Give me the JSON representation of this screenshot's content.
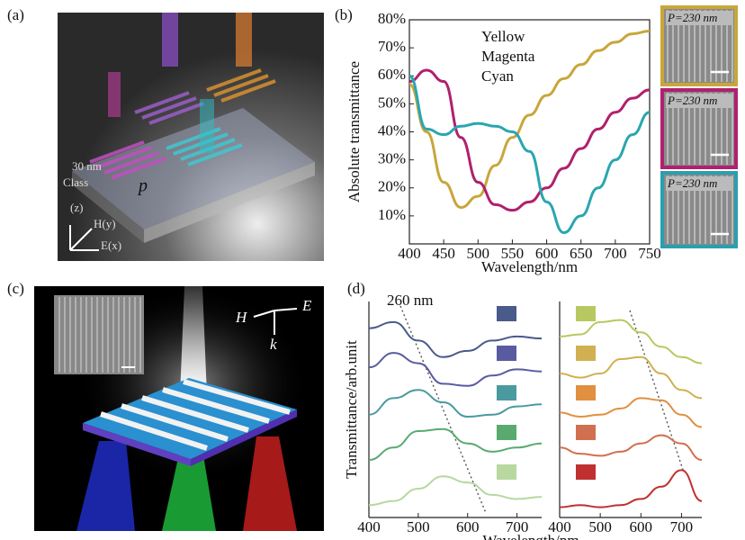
{
  "panel_labels": [
    "(a)",
    "(b)",
    "(c)",
    "(d)"
  ],
  "panel_a": {
    "thickness": "30 nm",
    "substrate": "Class",
    "period": "p",
    "h_field": "H(y)",
    "e_field": "E(x)",
    "k_axis": "(z)"
  },
  "panel_b_images": [
    {
      "label": "P=230 nm",
      "color": "#c9a63a"
    },
    {
      "label": "P=230 nm",
      "color": "#b0206e"
    },
    {
      "label": "P=230 nm",
      "color": "#2a9fb0"
    }
  ],
  "panel_c": {
    "h": "H",
    "e": "E",
    "k": "k"
  },
  "chart_data": [
    {
      "type": "line",
      "xlabel": "Wavelength/nm",
      "ylabel": "Absolute transmittance",
      "x": [
        400,
        425,
        450,
        475,
        500,
        525,
        550,
        575,
        600,
        625,
        650,
        675,
        700,
        725,
        750
      ],
      "series": [
        {
          "name": "Yellow",
          "color": "#c9a63a",
          "values": [
            57,
            40,
            22,
            13,
            17,
            28,
            38,
            46,
            53,
            59,
            64,
            69,
            72,
            75,
            76
          ]
        },
        {
          "name": "Magenta",
          "color": "#b0206e",
          "values": [
            58,
            62,
            58,
            38,
            22,
            14,
            12,
            15,
            20,
            27,
            34,
            41,
            47,
            52,
            55
          ]
        },
        {
          "name": "Cyan",
          "color": "#2aa6b0",
          "values": [
            60,
            41,
            39,
            42,
            43,
            42,
            40,
            33,
            15,
            4,
            10,
            20,
            30,
            39,
            47
          ]
        }
      ],
      "xlim": [
        400,
        750
      ],
      "xticks": [
        400,
        450,
        500,
        550,
        600,
        650,
        700,
        750
      ],
      "ylim": [
        0,
        80
      ],
      "yticks": [
        {
          "value": 10,
          "label": "10%"
        },
        {
          "value": 20,
          "label": "20%"
        },
        {
          "value": 30,
          "label": "30%"
        },
        {
          "value": 40,
          "label": "40%"
        },
        {
          "value": 50,
          "label": "50%"
        },
        {
          "value": 60,
          "label": "60%"
        },
        {
          "value": 70,
          "label": "70%"
        },
        {
          "value": 80,
          "label": "80%"
        }
      ]
    },
    {
      "type": "line",
      "xlabel": "Wavelength/nm",
      "ylabel": "Transmittance/arb.unit",
      "annotation": "260 nm",
      "x": [
        400,
        450,
        500,
        550,
        600,
        650,
        700,
        750
      ],
      "series": [
        {
          "color": "#4a5a8a",
          "values": [
            9.2,
            9.5,
            8.6,
            7.8,
            8.1,
            8.6,
            8.8,
            8.7
          ]
        },
        {
          "color": "#5a5aa0",
          "values": [
            7.3,
            8.0,
            7.5,
            6.5,
            6.4,
            6.9,
            7.2,
            7.1
          ]
        },
        {
          "color": "#4a9aa0",
          "values": [
            5.0,
            5.8,
            6.2,
            5.6,
            4.9,
            5.0,
            5.4,
            5.5
          ]
        },
        {
          "color": "#5aaa70",
          "values": [
            2.8,
            3.4,
            4.2,
            4.3,
            3.6,
            3.2,
            3.4,
            3.6
          ]
        },
        {
          "color": "#b8d8a0",
          "values": [
            0.6,
            0.8,
            1.4,
            2.0,
            1.7,
            1.1,
            0.9,
            1.0
          ]
        }
      ],
      "xlim": [
        400,
        750
      ],
      "xticks": [
        400,
        500,
        600,
        700
      ],
      "ylim": [
        0,
        10.5
      ]
    },
    {
      "type": "line",
      "x": [
        400,
        450,
        500,
        550,
        600,
        650,
        700,
        750
      ],
      "series": [
        {
          "color": "#b8c860",
          "values": [
            8.8,
            8.9,
            9.5,
            9.6,
            9.0,
            8.3,
            7.8,
            7.5
          ]
        },
        {
          "color": "#d0b050",
          "values": [
            7.0,
            6.8,
            7.0,
            7.7,
            7.8,
            7.0,
            6.2,
            5.8
          ]
        },
        {
          "color": "#e09040",
          "values": [
            5.1,
            4.9,
            5.0,
            5.3,
            5.8,
            5.7,
            5.0,
            4.4
          ]
        },
        {
          "color": "#d07050",
          "values": [
            3.4,
            3.1,
            3.0,
            3.2,
            3.6,
            4.0,
            3.6,
            2.8
          ]
        },
        {
          "color": "#c03030",
          "values": [
            0.5,
            0.6,
            0.5,
            0.6,
            0.9,
            1.5,
            2.3,
            0.8
          ]
        }
      ],
      "xlim": [
        400,
        750
      ],
      "xticks": [
        400,
        500,
        600,
        700
      ],
      "ylim": [
        0,
        10.5
      ]
    }
  ]
}
